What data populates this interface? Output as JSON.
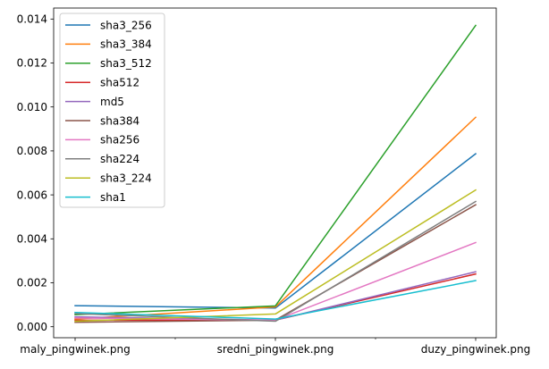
{
  "chart_data": {
    "type": "line",
    "categories": [
      "maly_pingwinek.png",
      "sredni_pingwinek.png",
      "duzy_pingwinek.png"
    ],
    "ylim": [
      -0.0005,
      0.0145
    ],
    "yticks": [
      0.0,
      0.002,
      0.004,
      0.006,
      0.008,
      0.01,
      0.012,
      0.014
    ],
    "ytick_labels": [
      "0.000",
      "0.002",
      "0.004",
      "0.006",
      "0.008",
      "0.010",
      "0.012",
      "0.014"
    ],
    "grid": false,
    "legend_position": "top-left",
    "series": [
      {
        "name": "sha3_256",
        "color": "#1f77b4",
        "values": [
          0.00096,
          0.00085,
          0.00787
        ]
      },
      {
        "name": "sha3_384",
        "color": "#ff7f0e",
        "values": [
          0.00035,
          0.0009,
          0.00953
        ]
      },
      {
        "name": "sha3_512",
        "color": "#2ca02c",
        "values": [
          0.00055,
          0.00095,
          0.01371
        ]
      },
      {
        "name": "sha512",
        "color": "#d62728",
        "values": [
          0.0003,
          0.0003,
          0.0024
        ]
      },
      {
        "name": "md5",
        "color": "#9467bd",
        "values": [
          0.00045,
          0.0003,
          0.0025
        ]
      },
      {
        "name": "sha384",
        "color": "#8c564b",
        "values": [
          0.0002,
          0.0003,
          0.00555
        ]
      },
      {
        "name": "sha256",
        "color": "#e377c2",
        "values": [
          0.0004,
          0.0003,
          0.00383
        ]
      },
      {
        "name": "sha224",
        "color": "#7f7f7f",
        "values": [
          0.0006,
          0.00025,
          0.0057
        ]
      },
      {
        "name": "sha3_224",
        "color": "#bcbd22",
        "values": [
          0.00025,
          0.00058,
          0.00622
        ]
      },
      {
        "name": "sha1",
        "color": "#17becf",
        "values": [
          0.00065,
          0.00035,
          0.0021
        ]
      }
    ]
  }
}
